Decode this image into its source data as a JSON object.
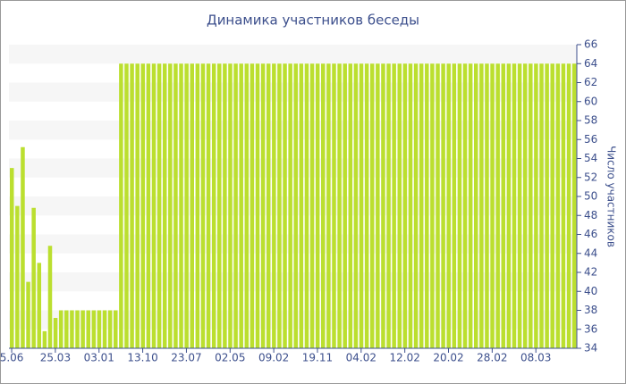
{
  "chart_data": {
    "type": "bar",
    "title": "Динамика участников беседы",
    "y_label": "Число участников",
    "categories": [
      "5.06",
      null,
      null,
      null,
      null,
      null,
      null,
      null,
      "25.03",
      null,
      null,
      null,
      null,
      null,
      null,
      null,
      "03.01",
      null,
      null,
      null,
      null,
      null,
      null,
      null,
      "13.10",
      null,
      null,
      null,
      null,
      null,
      null,
      null,
      "23.07",
      null,
      null,
      null,
      null,
      null,
      null,
      null,
      "02.05",
      null,
      null,
      null,
      null,
      null,
      null,
      null,
      "09.02",
      null,
      null,
      null,
      null,
      null,
      null,
      null,
      "19.11",
      null,
      null,
      null,
      null,
      null,
      null,
      null,
      "04.02",
      null,
      null,
      null,
      null,
      null,
      null,
      null,
      "12.02",
      null,
      null,
      null,
      null,
      null,
      null,
      null,
      "20.02",
      null,
      null,
      null,
      null,
      null,
      null,
      null,
      "28.02",
      null,
      null,
      null,
      null,
      null,
      null,
      null,
      "08.03",
      null,
      null,
      null,
      null,
      null,
      null,
      null
    ],
    "values": [
      53,
      49,
      55.2,
      41,
      48.8,
      43,
      35.8,
      44.8,
      37.2,
      38,
      38,
      38,
      38,
      38,
      38,
      38,
      38,
      38,
      38,
      38,
      64,
      64,
      64,
      64,
      64,
      64,
      64,
      64,
      64,
      64,
      64,
      64,
      64,
      64,
      64,
      64,
      64,
      64,
      64,
      64,
      64,
      64,
      64,
      64,
      64,
      64,
      64,
      64,
      64,
      64,
      64,
      64,
      64,
      64,
      64,
      64,
      64,
      64,
      64,
      64,
      64,
      64,
      64,
      64,
      64,
      64,
      64,
      64,
      64,
      64,
      64,
      64,
      64,
      64,
      64,
      64,
      64,
      64,
      64,
      64,
      64,
      64,
      64,
      64,
      64,
      64,
      64,
      64,
      64,
      64,
      64,
      64,
      64,
      64,
      64,
      64,
      64,
      64,
      64,
      64,
      64,
      64,
      64,
      64
    ],
    "color": "#bbdf2f",
    "ylim": [
      34,
      66
    ],
    "yticks": [
      34,
      36,
      38,
      40,
      42,
      44,
      46,
      48,
      50,
      52,
      54,
      56,
      58,
      60,
      62,
      64,
      66
    ],
    "grid": true
  }
}
